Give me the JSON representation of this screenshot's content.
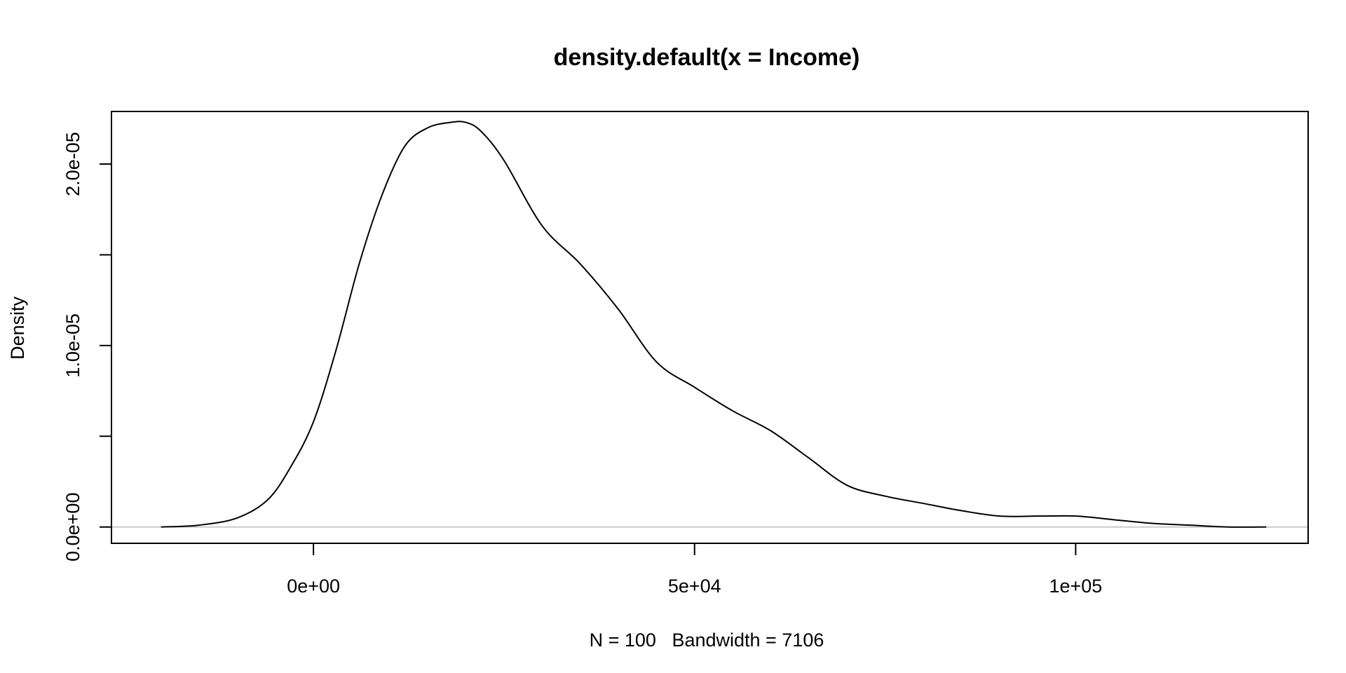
{
  "chart_data": {
    "type": "line",
    "title": "density.default(x = Income)",
    "xlabel": "N = 100   Bandwidth = 7106",
    "ylabel": "Density",
    "xlim": [
      -26500,
      130500
    ],
    "ylim": [
      -9e-07,
      2.29e-05
    ],
    "x_ticks": [
      {
        "value": 0,
        "label": "0e+00"
      },
      {
        "value": 50000,
        "label": "5e+04"
      },
      {
        "value": 100000,
        "label": "1e+05"
      }
    ],
    "y_ticks": [
      {
        "value": 0,
        "label": "0.0e+00"
      },
      {
        "value": 5e-06,
        "label": ""
      },
      {
        "value": 1e-05,
        "label": "1.0e-05"
      },
      {
        "value": 1.5e-05,
        "label": ""
      },
      {
        "value": 2e-05,
        "label": "2.0e-05"
      }
    ],
    "baseline": 0,
    "grid": false,
    "legend": "none",
    "series": [
      {
        "color": "#000000",
        "x": [
          -20000,
          -15000,
          -10000,
          -6000,
          -3000,
          0,
          3000,
          6000,
          9000,
          12000,
          15000,
          18000,
          20000,
          22000,
          25000,
          30000,
          35000,
          40000,
          45000,
          50000,
          55000,
          60000,
          65000,
          70000,
          75000,
          80000,
          85000,
          90000,
          95000,
          100000,
          105000,
          110000,
          115000,
          120000,
          125000
        ],
        "y": [
          0.0,
          1e-07,
          5e-07,
          1.5e-06,
          3.3e-06,
          5.8e-06,
          9.8e-06,
          1.45e-05,
          1.83e-05,
          2.1e-05,
          2.2e-05,
          2.23e-05,
          2.23e-05,
          2.18e-05,
          2.02e-05,
          1.66e-05,
          1.45e-05,
          1.2e-05,
          9.1e-06,
          7.7e-06,
          6.4e-06,
          5.3e-06,
          3.8e-06,
          2.3e-06,
          1.7e-06,
          1.3e-06,
          9e-07,
          6e-07,
          6e-07,
          6e-07,
          4e-07,
          2e-07,
          1e-07,
          0.0,
          0.0
        ]
      }
    ]
  }
}
